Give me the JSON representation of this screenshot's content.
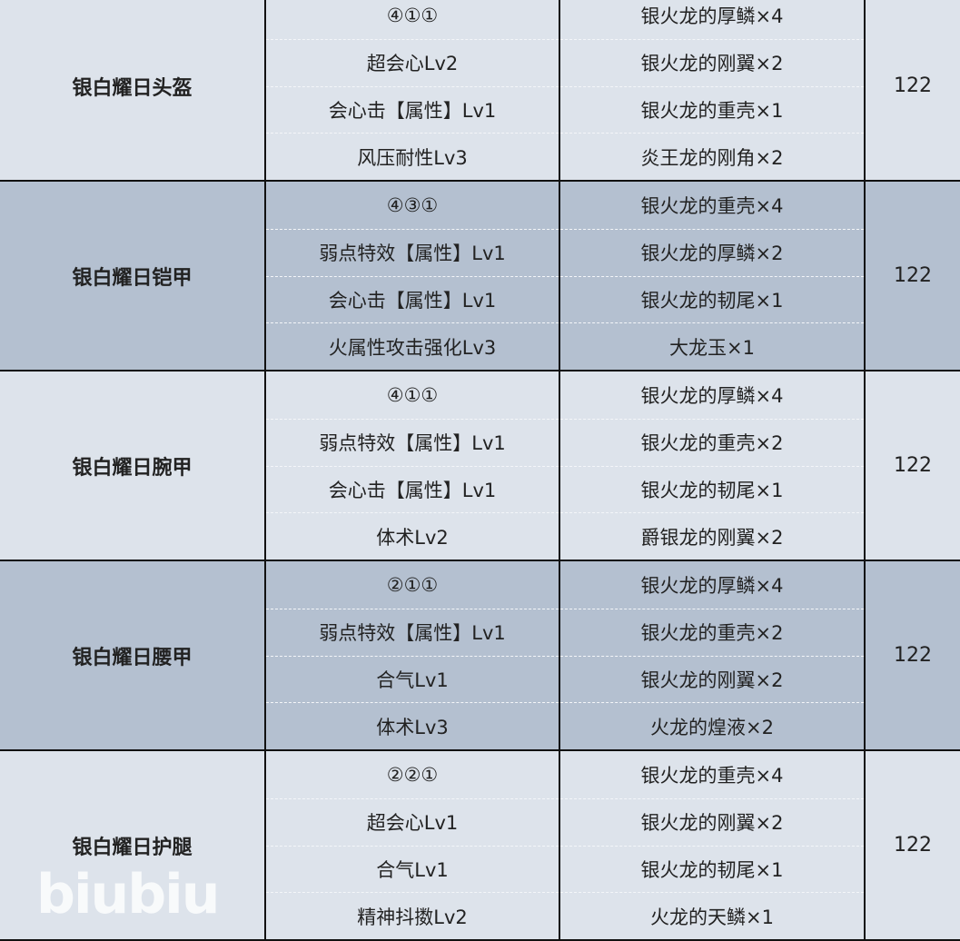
{
  "colors": {
    "light_row": "#dde3eb",
    "dark_row": "#b4c0d0",
    "border": "#111111"
  },
  "rows": [
    {
      "name": "银白耀日头盔",
      "skills": [
        "④①①",
        "超会心Lv2",
        "会心击【属性】Lv1",
        "风压耐性Lv3"
      ],
      "materials": [
        "银火龙的厚鳞×4",
        "银火龙的刚翼×2",
        "银火龙的重壳×1",
        "炎王龙的刚角×2"
      ],
      "value": "122",
      "shade": "light"
    },
    {
      "name": "银白耀日铠甲",
      "skills": [
        "④③①",
        "弱点特效【属性】Lv1",
        "会心击【属性】Lv1",
        "火属性攻击强化Lv3"
      ],
      "materials": [
        "银火龙的重壳×4",
        "银火龙的厚鳞×2",
        "银火龙的韧尾×1",
        "大龙玉×1"
      ],
      "value": "122",
      "shade": "dark"
    },
    {
      "name": "银白耀日腕甲",
      "skills": [
        "④①①",
        "弱点特效【属性】Lv1",
        "会心击【属性】Lv1",
        "体术Lv2"
      ],
      "materials": [
        "银火龙的厚鳞×4",
        "银火龙的重壳×2",
        "银火龙的韧尾×1",
        "爵银龙的刚翼×2"
      ],
      "value": "122",
      "shade": "light"
    },
    {
      "name": "银白耀日腰甲",
      "skills": [
        "②①①",
        "弱点特效【属性】Lv1",
        "合气Lv1",
        "体术Lv3"
      ],
      "materials": [
        "银火龙的厚鳞×4",
        "银火龙的重壳×2",
        "银火龙的刚翼×2",
        "火龙的煌液×2"
      ],
      "value": "122",
      "shade": "dark"
    },
    {
      "name": "银白耀日护腿",
      "skills": [
        "②②①",
        "超会心Lv1",
        "合气Lv1",
        "精神抖擞Lv2"
      ],
      "materials": [
        "银火龙的重壳×4",
        "银火龙的刚翼×2",
        "银火龙的韧尾×1",
        "火龙的天鳞×1"
      ],
      "value": "122",
      "shade": "light"
    }
  ],
  "watermark": "biubiu"
}
